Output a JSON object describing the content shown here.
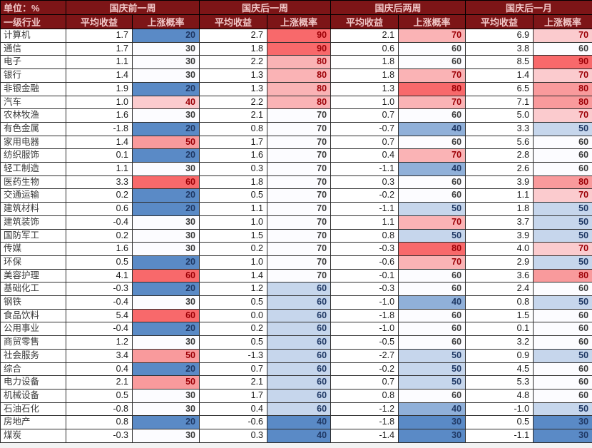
{
  "table": {
    "unit_label": "单位：%",
    "row_header": "一级行业"
  },
  "colors": {
    "header_bg": "#7D1517",
    "header_text": "#F0C6C6",
    "scale_low": "#5A8AC6",
    "scale_mid": "#FCFCFF",
    "scale_high": "#F8696B",
    "prob_text_red": "#9C0006",
    "prob_text_blue": "#1F3864",
    "prob_text_neutral": "#3C3C3C",
    "return_text": "#1A1A1A",
    "border": "#2E2E2E"
  },
  "chart_data": {
    "type": "table",
    "unit": "单位：%",
    "row_header": "一级行业",
    "column_groups": [
      "国庆前一周",
      "国庆后一周",
      "国庆后两周",
      "国庆后一月"
    ],
    "sub_columns": [
      "平均收益",
      "上涨概率"
    ],
    "prob_scales": [
      {
        "min": 20,
        "mid": 30,
        "max": 60
      },
      {
        "min": 40,
        "mid": 70,
        "max": 90
      },
      {
        "min": 30,
        "mid": 60,
        "max": 80
      },
      {
        "min": 30,
        "mid": 60,
        "max": 90
      }
    ],
    "rows": [
      {
        "industry": "计算机",
        "values": [
          1.7,
          20,
          2.7,
          90,
          2.1,
          70,
          6.9,
          70
        ]
      },
      {
        "industry": "通信",
        "values": [
          1.7,
          30,
          1.8,
          90,
          0.6,
          60,
          3.8,
          60
        ]
      },
      {
        "industry": "电子",
        "values": [
          1.1,
          30,
          2.2,
          80,
          1.8,
          60,
          8.5,
          90
        ]
      },
      {
        "industry": "银行",
        "values": [
          1.4,
          30,
          1.3,
          80,
          1.8,
          70,
          1.4,
          70
        ]
      },
      {
        "industry": "非银金融",
        "values": [
          1.9,
          20,
          1.3,
          80,
          1.3,
          80,
          6.5,
          80
        ]
      },
      {
        "industry": "汽车",
        "values": [
          1.0,
          40,
          2.2,
          80,
          1.0,
          70,
          7.1,
          80
        ]
      },
      {
        "industry": "农林牧渔",
        "values": [
          1.6,
          30,
          2.1,
          70,
          0.7,
          60,
          5.0,
          70
        ]
      },
      {
        "industry": "有色金属",
        "values": [
          -1.8,
          20,
          0.8,
          70,
          -0.7,
          40,
          3.3,
          50
        ]
      },
      {
        "industry": "家用电器",
        "values": [
          1.4,
          50,
          1.7,
          70,
          0.7,
          60,
          5.6,
          60
        ]
      },
      {
        "industry": "纺织服饰",
        "values": [
          0.1,
          20,
          1.6,
          70,
          0.4,
          70,
          2.8,
          60
        ]
      },
      {
        "industry": "轻工制造",
        "values": [
          1.1,
          30,
          0.3,
          70,
          -1.1,
          40,
          2.6,
          60
        ]
      },
      {
        "industry": "医药生物",
        "values": [
          3.3,
          60,
          1.8,
          70,
          0.3,
          60,
          3.9,
          80
        ]
      },
      {
        "industry": "交通运输",
        "values": [
          0.2,
          20,
          0.5,
          70,
          -0.2,
          60,
          1.1,
          70
        ]
      },
      {
        "industry": "建筑材料",
        "values": [
          0.6,
          20,
          1.1,
          70,
          -1.1,
          50,
          1.8,
          50
        ]
      },
      {
        "industry": "建筑装饰",
        "values": [
          -0.4,
          30,
          1.0,
          70,
          1.1,
          70,
          3.7,
          50
        ]
      },
      {
        "industry": "国防军工",
        "values": [
          0.2,
          30,
          1.5,
          70,
          0.8,
          50,
          3.9,
          50
        ]
      },
      {
        "industry": "传媒",
        "values": [
          1.6,
          30,
          0.2,
          70,
          -0.3,
          80,
          4.0,
          70
        ]
      },
      {
        "industry": "环保",
        "values": [
          0.5,
          20,
          1.0,
          70,
          -0.6,
          70,
          2.9,
          50
        ]
      },
      {
        "industry": "美容护理",
        "values": [
          4.1,
          60,
          1.4,
          70,
          -0.1,
          60,
          3.6,
          80
        ]
      },
      {
        "industry": "基础化工",
        "values": [
          -0.3,
          20,
          1.2,
          60,
          -0.3,
          60,
          2.4,
          60
        ]
      },
      {
        "industry": "钢铁",
        "values": [
          -0.4,
          30,
          0.5,
          60,
          -1.0,
          40,
          0.8,
          50
        ]
      },
      {
        "industry": "食品饮料",
        "values": [
          5.4,
          60,
          0.0,
          60,
          -1.8,
          60,
          1.5,
          60
        ]
      },
      {
        "industry": "公用事业",
        "values": [
          -0.4,
          20,
          0.2,
          60,
          -1.0,
          60,
          0.1,
          60
        ]
      },
      {
        "industry": "商贸零售",
        "values": [
          1.2,
          30,
          0.5,
          60,
          -0.5,
          60,
          3.2,
          60
        ]
      },
      {
        "industry": "社会服务",
        "values": [
          3.4,
          50,
          -1.3,
          60,
          -2.7,
          50,
          0.9,
          50
        ]
      },
      {
        "industry": "综合",
        "values": [
          0.4,
          20,
          0.7,
          60,
          -0.2,
          50,
          4.5,
          60
        ]
      },
      {
        "industry": "电力设备",
        "values": [
          2.1,
          50,
          2.1,
          60,
          0.7,
          50,
          5.3,
          60
        ]
      },
      {
        "industry": "机械设备",
        "values": [
          0.5,
          30,
          1.7,
          60,
          0.8,
          60,
          4.8,
          60
        ]
      },
      {
        "industry": "石油石化",
        "values": [
          -0.8,
          30,
          0.4,
          60,
          -1.2,
          40,
          -1.0,
          50
        ]
      },
      {
        "industry": "房地产",
        "values": [
          0.8,
          20,
          -0.6,
          40,
          -1.8,
          30,
          0.5,
          30
        ]
      },
      {
        "industry": "煤炭",
        "values": [
          -0.3,
          30,
          0.3,
          40,
          -1.4,
          30,
          -1.1,
          30
        ]
      }
    ]
  }
}
